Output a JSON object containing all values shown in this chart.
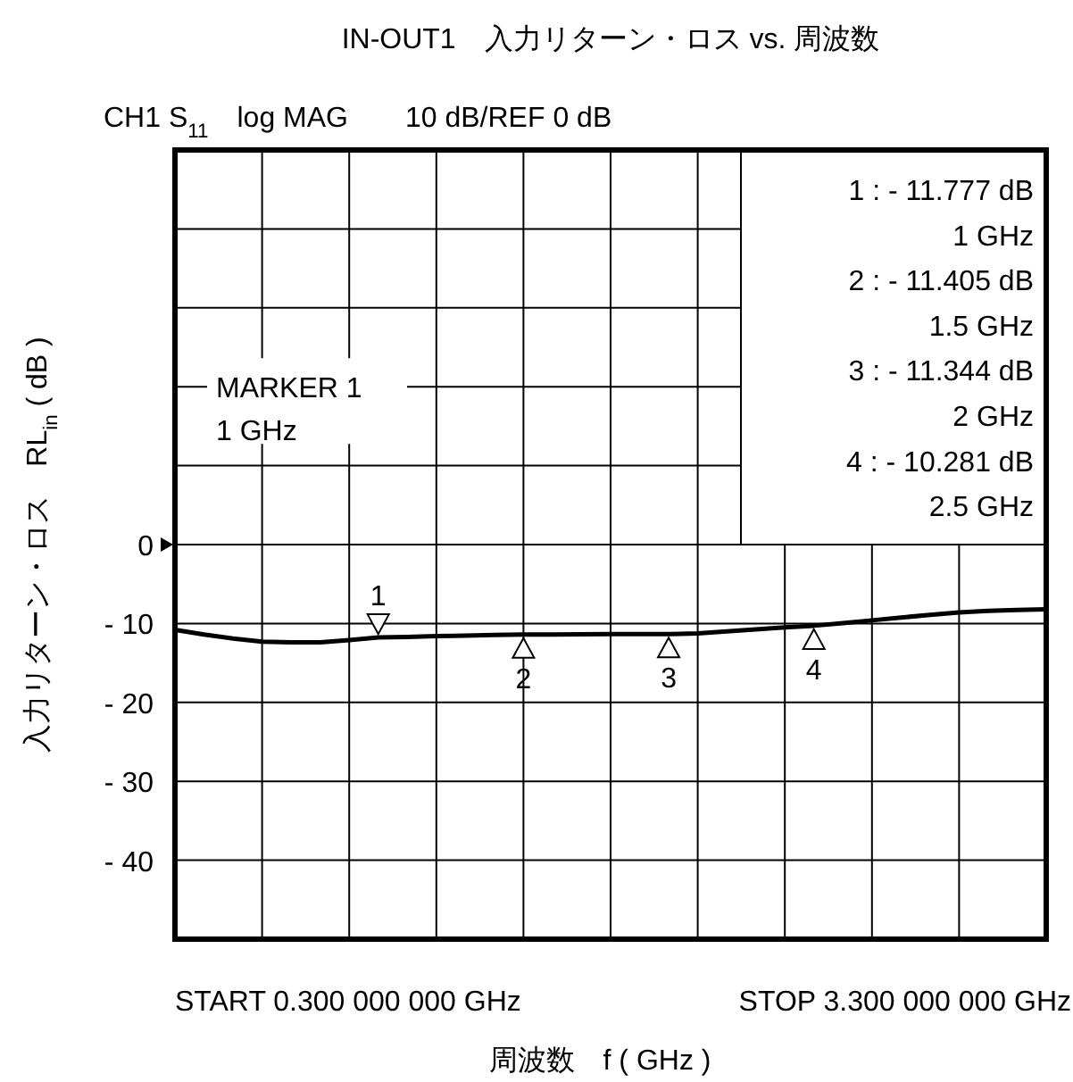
{
  "chart_data": {
    "type": "line",
    "title": "IN-OUT1　入力リターン・ロス vs. 周波数",
    "subtitle": "CH1 S$_{11}$　log MAG　　10 dB/REF 0 dB",
    "xlabel": "周波数　f ( GHz )",
    "ylabel": "入力リターン・ロス　RL$_{in}$ ( dB )",
    "categories": [
      null,
      null,
      null,
      null,
      null,
      null,
      null,
      null,
      null,
      null,
      null,
      null,
      null,
      null,
      null,
      null,
      null,
      null,
      null,
      null,
      null,
      null,
      null,
      null,
      null,
      null,
      null,
      null,
      null,
      null,
      null
    ],
    "series": [
      {
        "color": "#000000",
        "values": [
          -10.8,
          -11.4,
          -11.9,
          -12.3,
          -12.4,
          -12.4,
          -12.1,
          -11.777,
          -11.7,
          -11.6,
          -11.55,
          -11.45,
          -11.405,
          -11.4,
          -11.37,
          -11.35,
          -11.35,
          -11.344,
          -11.25,
          -11.0,
          -10.75,
          -10.5,
          -10.281,
          -9.95,
          -9.6,
          -9.25,
          -8.9,
          -8.6,
          -8.4,
          -8.3,
          -8.2
        ]
      }
    ],
    "ylim": [
      -50,
      50
    ],
    "yticks": [
      {
        "value": 40,
        "label": null
      },
      {
        "value": 30,
        "label": null
      },
      {
        "value": 20,
        "label": null
      },
      {
        "value": 10,
        "label": null
      },
      {
        "value": 0,
        "label": "0"
      },
      {
        "value": -10,
        "label": "- 10"
      },
      {
        "value": -20,
        "label": "- 20"
      },
      {
        "value": -30,
        "label": "- 30"
      },
      {
        "value": -40,
        "label": "- 40"
      }
    ],
    "grid": true,
    "tick_labels": "y",
    "marker": "none",
    "line_style": "solid",
    "annotations": [
      {
        "text": "1",
        "y": -11.777
      },
      {
        "text": "2",
        "y": -11.405
      },
      {
        "text": "3",
        "y": -11.344
      },
      {
        "text": "4",
        "y": -10.281
      },
      "1 :  - 11.777 dB",
      "1 GHz",
      "2 :  - 11.405 dB",
      "1.5 GHz",
      "3 :  - 11.344 dB",
      "2 GHz",
      "4 :  - 10.281 dB",
      "2.5 GHz",
      "MARKER 1",
      "1 GHz",
      "START 0.300 000 000 GHz",
      "STOP 3.300 000 000 GHz"
    ]
  }
}
